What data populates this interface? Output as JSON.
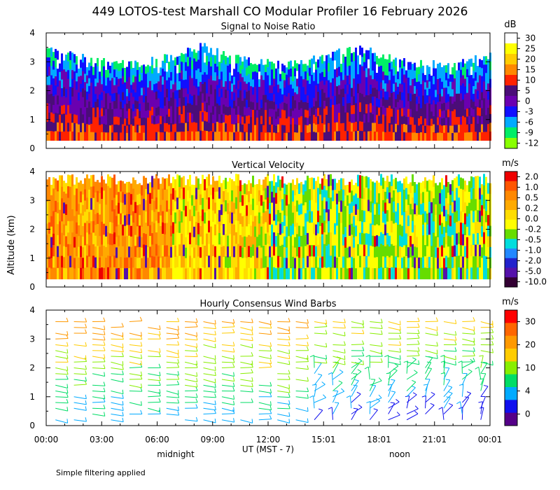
{
  "page": {
    "title": "449 LOTOS-test Marshall CO Modular Profiler 16 February 2026",
    "y_axis_label": "Altitude (km)",
    "x_axis_label": "UT  (MST - 7)",
    "midnight_label": "midnight",
    "noon_label": "noon",
    "footnote": "Simple filtering applied"
  },
  "chart_data": [
    {
      "type": "heatmap",
      "title": "Signal to Noise Ratio",
      "ylabel": "Altitude (km)",
      "ylim": [
        0,
        4
      ],
      "yticks": [
        "0",
        "1",
        "2",
        "3",
        "4"
      ],
      "xlim_hours_ut": [
        0,
        24
      ],
      "colorbar_unit": "dB",
      "colorbar_labels": [
        "30",
        "25",
        "20",
        "15",
        "10",
        "5",
        "0",
        "-3",
        "-6",
        "-9",
        "-12"
      ],
      "colorbar_colors": [
        "#ffffff",
        "#ffff00",
        "#ffcc00",
        "#ff8800",
        "#ff2200",
        "#4a0d78",
        "#6a00b0",
        "#1010ff",
        "#00aaff",
        "#00ee66",
        "#88ff00"
      ]
    },
    {
      "type": "heatmap",
      "title": "Vertical Velocity",
      "ylabel": "Altitude (km)",
      "ylim": [
        0,
        4
      ],
      "yticks": [
        "0",
        "1",
        "2",
        "3",
        "4"
      ],
      "xlim_hours_ut": [
        0,
        24
      ],
      "colorbar_unit": "m/s",
      "colorbar_labels": [
        "2.0",
        "1.0",
        "0.5",
        "0.2",
        "0.0",
        "-0.2",
        "-0.5",
        "-1.0",
        "-2.0",
        "-5.0",
        "-10.0"
      ],
      "colorbar_colors": [
        "#ee0000",
        "#ff5500",
        "#ff8800",
        "#ffaa00",
        "#ffdd00",
        "#ffff00",
        "#66dd00",
        "#00dddd",
        "#2288ff",
        "#2222cc",
        "#5511aa",
        "#330033"
      ]
    },
    {
      "type": "wind_barbs",
      "title": "Hourly Consensus Wind Barbs",
      "ylabel": "Altitude (km)",
      "ylim": [
        0,
        4
      ],
      "yticks": [
        "0",
        "1",
        "2",
        "3",
        "4"
      ],
      "xlim_hours_ut": [
        0,
        24
      ],
      "colorbar_unit": "m/s",
      "colorbar_labels": [
        "30",
        "20",
        "10",
        "4",
        "0"
      ],
      "colorbar_colors": [
        "#ff0000",
        "#ff6600",
        "#ff9900",
        "#ffcc00",
        "#88ee00",
        "#00dd66",
        "#00aaff",
        "#1010ee",
        "#550088"
      ]
    }
  ],
  "x_ticks": [
    "00:00",
    "03:00",
    "06:00",
    "09:00",
    "12:00",
    "15:01",
    "18:01",
    "21:01",
    "00:01"
  ]
}
